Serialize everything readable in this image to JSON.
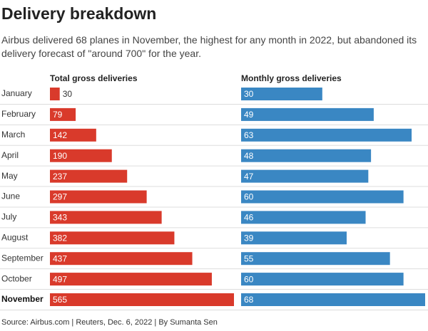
{
  "title": "Delivery breakdown",
  "subtitle": "Airbus delivered 68 planes in November, the highest for any month in 2022, but abandoned its delivery forecast of \"around 700\" for the year.",
  "source": "Source: Airbus.com | Reuters, Dec. 6, 2022 | By Sumanta Sen",
  "chart_data": [
    {
      "type": "bar",
      "title": "Total gross deliveries",
      "categories": [
        "January",
        "February",
        "March",
        "April",
        "May",
        "June",
        "July",
        "August",
        "September",
        "October",
        "November"
      ],
      "values": [
        30,
        79,
        142,
        190,
        237,
        297,
        343,
        382,
        437,
        497,
        565
      ],
      "color": "#d93a2b"
    },
    {
      "type": "bar",
      "title": "Monthly gross deliveries",
      "values": [
        30,
        49,
        63,
        48,
        47,
        60,
        46,
        39,
        55,
        60,
        68
      ],
      "color": "#3a87c3"
    }
  ]
}
